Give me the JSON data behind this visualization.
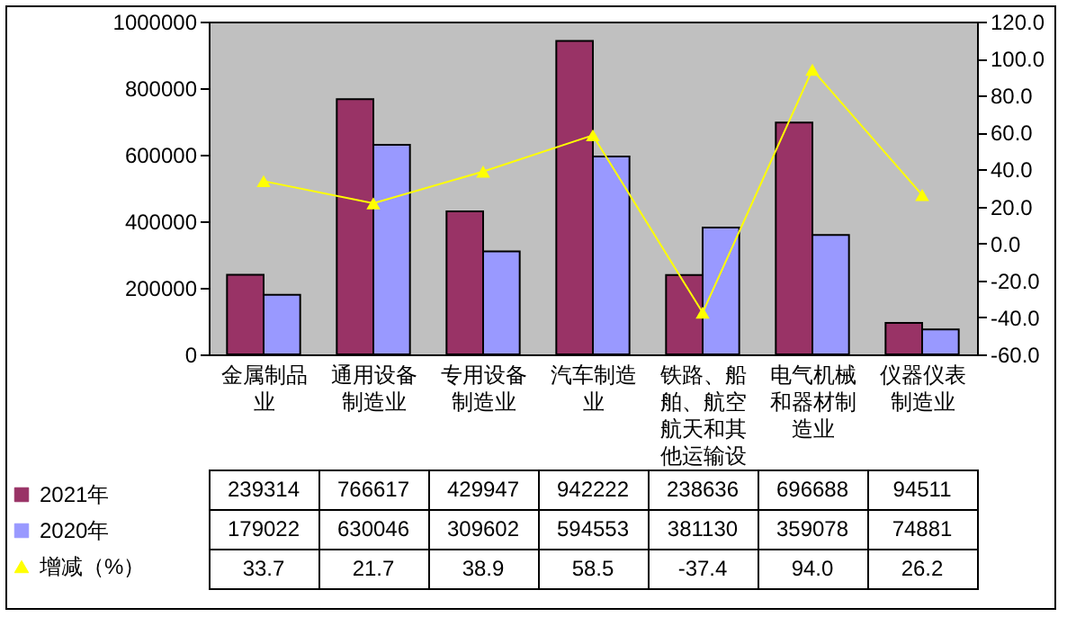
{
  "chart_data": {
    "type": "bar",
    "categories": [
      "金属制品业",
      "通用设备制造业",
      "专用设备制造业",
      "汽车制造业",
      "铁路、船舶、航空航天和其他运输设",
      "电气机械和器材制造业",
      "仪器仪表制造业"
    ],
    "series": [
      {
        "name": "2021年",
        "color": "#993366",
        "values": [
          239314,
          766617,
          429947,
          942222,
          238636,
          696688,
          94511
        ],
        "value_labels": [
          "239314",
          "766617",
          "429947",
          "942222",
          "238636",
          "696688",
          "94511"
        ]
      },
      {
        "name": "2020年",
        "color": "#9999ff",
        "values": [
          179022,
          630046,
          309602,
          594553,
          381130,
          359078,
          74881
        ],
        "value_labels": [
          "179022",
          "630046",
          "309602",
          "594553",
          "381130",
          "359078",
          "74881"
        ]
      },
      {
        "name": "增减（%）",
        "type": "line",
        "axis": "y2",
        "color": "#ffff00",
        "marker": "triangle",
        "values": [
          33.7,
          21.7,
          38.9,
          58.5,
          -37.4,
          94.0,
          26.2
        ],
        "value_labels": [
          "33.7",
          "21.7",
          "38.9",
          "58.5",
          "-37.4",
          "94.0",
          "26.2"
        ]
      }
    ],
    "ylim": [
      0,
      1000000
    ],
    "yticks": [
      0,
      200000,
      400000,
      600000,
      800000,
      1000000
    ],
    "y2lim": [
      -60,
      120
    ],
    "y2ticks": [
      {
        "value": -60,
        "label": "-60.0"
      },
      {
        "value": -40,
        "label": "-40.0"
      },
      {
        "value": -20,
        "label": "-20.0"
      },
      {
        "value": 0,
        "label": "0.0"
      },
      {
        "value": 20,
        "label": "20.0"
      },
      {
        "value": 40,
        "label": "40.0"
      },
      {
        "value": 60,
        "label": "60.0"
      },
      {
        "value": 80,
        "label": "80.0"
      },
      {
        "value": 100,
        "label": "100.0"
      },
      {
        "value": 120,
        "label": "120.0"
      }
    ],
    "grid": false,
    "legend": "bottom left"
  }
}
